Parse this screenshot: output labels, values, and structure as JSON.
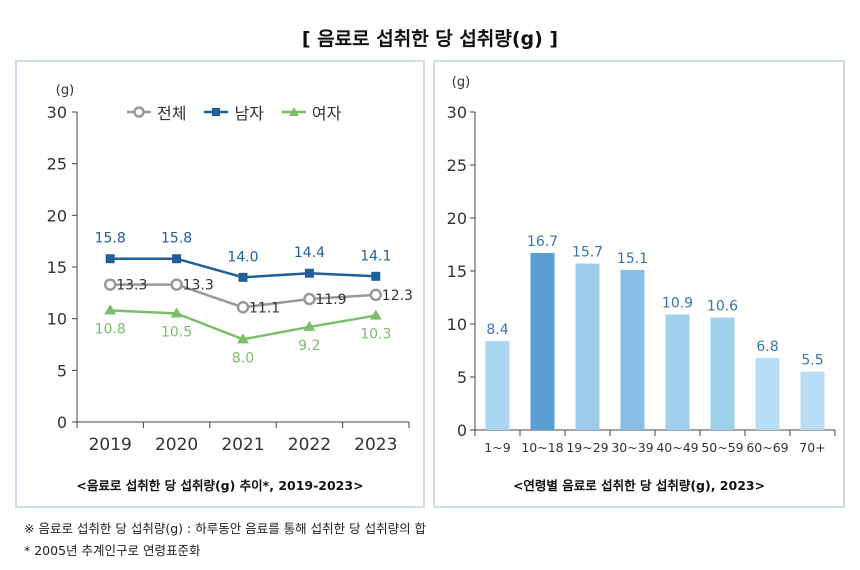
{
  "main_title": "[ 음료로 섭취한 당 섭취량(g) ]",
  "chart_data": [
    {
      "type": "line",
      "title": "<음료로 섭취한 당 섭취량(g) 추이*, 2019-2023>",
      "ylabel": "(g)",
      "ylim": [
        0,
        30
      ],
      "yticks": [
        "0",
        "5",
        "10",
        "15",
        "20",
        "25",
        "30"
      ],
      "yticks_values": [
        0,
        5,
        10,
        15,
        20,
        25,
        30
      ],
      "categories": [
        "2019",
        "2020",
        "2021",
        "2022",
        "2023"
      ],
      "series": [
        {
          "name": "전체",
          "color": "#999999",
          "marker": "circle",
          "values": [
            13.3,
            13.3,
            11.1,
            11.9,
            12.3
          ],
          "labels": [
            "13.3",
            "13.3",
            "11.1",
            "11.9",
            "12.3"
          ]
        },
        {
          "name": "남자",
          "color": "#1f5f9b",
          "marker": "square",
          "values": [
            15.8,
            15.8,
            14.0,
            14.4,
            14.1
          ],
          "labels": [
            "15.8",
            "15.8",
            "14.0",
            "14.4",
            "14.1"
          ]
        },
        {
          "name": "여자",
          "color": "#7bbf6a",
          "marker": "triangle",
          "values": [
            10.8,
            10.5,
            8.0,
            9.2,
            10.3
          ],
          "labels": [
            "10.8",
            "10.5",
            "8.0",
            "9.2",
            "10.3"
          ]
        }
      ]
    },
    {
      "type": "bar",
      "title": "<연령별 음료로 섭취한 당 섭취량(g), 2023>",
      "ylabel": "(g)",
      "ylim": [
        0,
        30
      ],
      "yticks": [
        "0",
        "5",
        "10",
        "15",
        "20",
        "25",
        "30"
      ],
      "yticks_values": [
        0,
        5,
        10,
        15,
        20,
        25,
        30
      ],
      "categories": [
        "1~9",
        "10~18",
        "19~29",
        "30~39",
        "40~49",
        "50~59",
        "60~69",
        "70+"
      ],
      "values": [
        8.4,
        16.7,
        15.7,
        15.1,
        10.9,
        10.6,
        6.8,
        5.5
      ],
      "labels": [
        "8.4",
        "16.7",
        "15.7",
        "15.1",
        "10.9",
        "10.6",
        "6.8",
        "5.5"
      ],
      "colors": [
        "#a9d6f2",
        "#5a9fd4",
        "#9ecbea",
        "#89bde6",
        "#9fd1ef",
        "#9fd1ef",
        "#b8def5",
        "#b8def5"
      ],
      "label_color": "#3b73b0"
    }
  ],
  "footnotes": [
    "※ 음료로 섭취한 당 섭취량(g) : 하루동안 음료를 통해 섭취한 당 섭취량의 합",
    "* 2005년 추계인구로 연령표준화"
  ]
}
